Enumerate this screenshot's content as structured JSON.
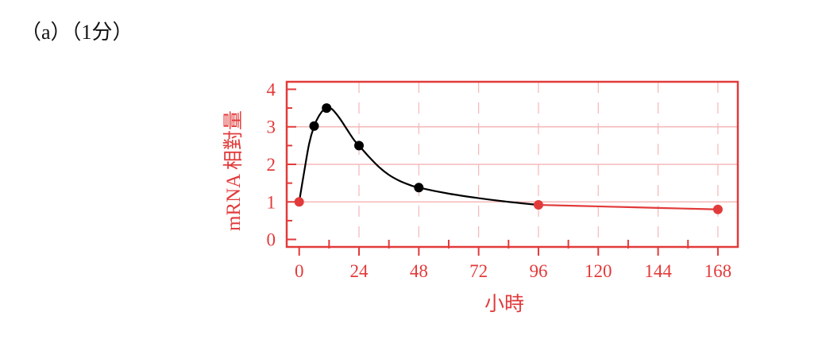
{
  "header": {
    "label": "（a）（1分）"
  },
  "chart_data": {
    "type": "line",
    "title": "",
    "xlabel": "小時",
    "ylabel": "mRNA 相對量",
    "x_ticks": [
      0,
      24,
      48,
      72,
      96,
      120,
      144,
      168
    ],
    "y_ticks": [
      0,
      1,
      2,
      3,
      4
    ],
    "xlim": [
      -5,
      176
    ],
    "ylim": [
      -0.2,
      4.2
    ],
    "grid": true,
    "series": [
      {
        "points": [
          {
            "x": 0,
            "y": 1.0,
            "color": "#e23a3a"
          },
          {
            "x": 6,
            "y": 3.02,
            "color": "#000000"
          },
          {
            "x": 11,
            "y": 3.5,
            "color": "#000000"
          },
          {
            "x": 24,
            "y": 2.5,
            "color": "#000000"
          },
          {
            "x": 48,
            "y": 1.38,
            "color": "#000000"
          },
          {
            "x": 96,
            "y": 0.92,
            "color": "#e23a3a"
          },
          {
            "x": 168,
            "y": 0.8,
            "color": "#e23a3a"
          }
        ],
        "curve_black": [
          [
            0,
            1.0
          ],
          [
            2,
            1.8
          ],
          [
            4,
            2.55
          ],
          [
            6,
            3.02
          ],
          [
            8,
            3.3
          ],
          [
            10,
            3.47
          ],
          [
            11,
            3.5
          ],
          [
            13,
            3.48
          ],
          [
            16,
            3.25
          ],
          [
            19,
            2.95
          ],
          [
            22,
            2.65
          ],
          [
            24,
            2.5
          ],
          [
            28,
            2.2
          ],
          [
            32,
            1.93
          ],
          [
            36,
            1.72
          ],
          [
            40,
            1.57
          ],
          [
            44,
            1.46
          ],
          [
            48,
            1.38
          ],
          [
            60,
            1.22
          ],
          [
            72,
            1.1
          ],
          [
            84,
            1.0
          ],
          [
            96,
            0.92
          ]
        ],
        "curve_red": [
          [
            96,
            0.92
          ],
          [
            120,
            0.88
          ],
          [
            144,
            0.84
          ],
          [
            168,
            0.8
          ]
        ]
      }
    ],
    "colors": {
      "axis": "#e23a3a",
      "grid_solid": "#f2aaaa",
      "grid_dashed": "#f4b8b8",
      "curve": "#000000",
      "label": "#e23a3a"
    }
  }
}
